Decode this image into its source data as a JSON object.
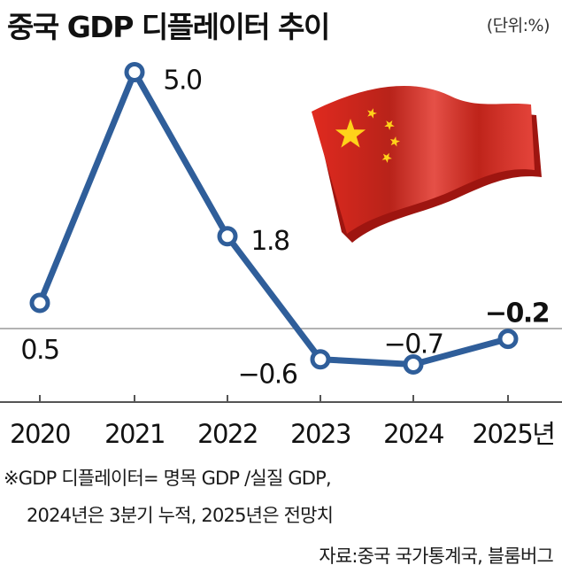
{
  "title": "중국 GDP 디플레이터 추이",
  "unit": "(단위:%)",
  "chart_data": {
    "type": "line",
    "categories": [
      "2020",
      "2021",
      "2022",
      "2023",
      "2024",
      "2025년"
    ],
    "values": [
      0.5,
      5.0,
      1.8,
      -0.6,
      -0.7,
      -0.2
    ],
    "value_labels": [
      "0.5",
      "5.0",
      "1.8",
      "−0.6",
      "−0.7",
      "−0.2"
    ],
    "ylim": [
      -1.5,
      6.0
    ],
    "baseline": 0,
    "grid": false,
    "line_color": "#2f5e9a",
    "marker_fill": "#ffffff"
  },
  "notes": {
    "line1": "※GDP 디플레이터= 명목 GDP /실질 GDP,",
    "line2": "2024년은 3분기 누적, 2025년은 전망치"
  },
  "source": "자료:중국 국가통계국, 블룸버그",
  "flag": {
    "icon": "china-flag-icon",
    "red": "#e02a1f",
    "star": "#ffd21a"
  }
}
